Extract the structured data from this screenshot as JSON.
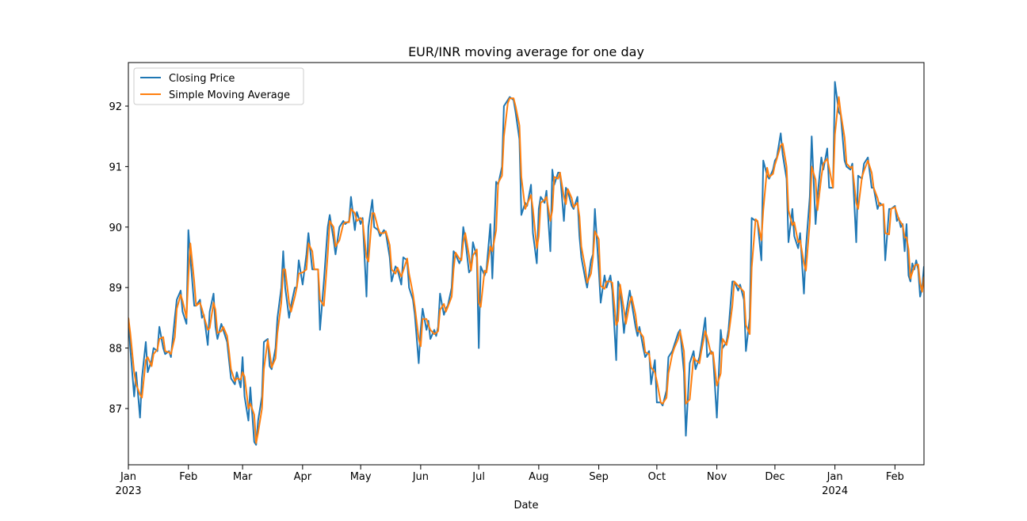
{
  "chart_data": {
    "type": "line",
    "title": "EUR/INR moving average for one day",
    "xlabel": "Date",
    "x": [
      0,
      1,
      3,
      4,
      6,
      7,
      9,
      10,
      12,
      13,
      15,
      16,
      18,
      19,
      21,
      22,
      24,
      25,
      27,
      28,
      30,
      31,
      32,
      34,
      35,
      37,
      38,
      39,
      41,
      42,
      44,
      45,
      46,
      48,
      49,
      51,
      52,
      53,
      55,
      56,
      58,
      59,
      60,
      62,
      63,
      65,
      66,
      67,
      69,
      70,
      72,
      73,
      74,
      76,
      77,
      79,
      80,
      81,
      83,
      84,
      86,
      87,
      88,
      90,
      92,
      93,
      95,
      96,
      98,
      99,
      101,
      103,
      104,
      106,
      107,
      109,
      111,
      112,
      114,
      115,
      117,
      118,
      120,
      121,
      123,
      124,
      126,
      127,
      129,
      130,
      132,
      133,
      135,
      136,
      138,
      139,
      141,
      142,
      144,
      145,
      147,
      148,
      150,
      151,
      152,
      154,
      155,
      156,
      158,
      159,
      160,
      161,
      163,
      164,
      165,
      167,
      168,
      169,
      171,
      172,
      173,
      174,
      176,
      177,
      178,
      180,
      181,
      182,
      184,
      185,
      187,
      188,
      190,
      191,
      193,
      194,
      196,
      197,
      199,
      200,
      202,
      203,
      205,
      206,
      208,
      209,
      211,
      212,
      213,
      215,
      216,
      218,
      219,
      220,
      222,
      223,
      225,
      226,
      227,
      229,
      230,
      232,
      233,
      234,
      236,
      237,
      239,
      240,
      241,
      243,
      244,
      246,
      247,
      249,
      250,
      252,
      253,
      254,
      256,
      257,
      259,
      260,
      262,
      263,
      264,
      266,
      267,
      269,
      270,
      272,
      273,
      275,
      276,
      278,
      279,
      281,
      282,
      284,
      285,
      287,
      288,
      290,
      292,
      293,
      295,
      296,
      298,
      299,
      301,
      302,
      304,
      306,
      307,
      309,
      310,
      312,
      313,
      315,
      316,
      318,
      319,
      321,
      322,
      324,
      325,
      327,
      328,
      330,
      331,
      333,
      334,
      335,
      337,
      338,
      340,
      341,
      343,
      344,
      346,
      347,
      349,
      350,
      352,
      353,
      355,
      356,
      358,
      359,
      361,
      362,
      364,
      365,
      367,
      368,
      370,
      371,
      373,
      374,
      376,
      377,
      379,
      380,
      382,
      384,
      385,
      387,
      388,
      390,
      391,
      393,
      394,
      396,
      397,
      398,
      399,
      400,
      401,
      402,
      403,
      404,
      405,
      406,
      407,
      408,
      409,
      410,
      411
    ],
    "series": [
      {
        "name": "Closing Price",
        "color": "#1f77b4",
        "values": [
          88.5,
          88.0,
          87.2,
          87.6,
          86.85,
          87.5,
          88.1,
          87.6,
          87.8,
          88.0,
          87.95,
          88.35,
          88.0,
          87.9,
          87.95,
          87.85,
          88.5,
          88.8,
          88.95,
          88.6,
          88.4,
          89.95,
          89.5,
          88.7,
          88.7,
          88.8,
          88.5,
          88.55,
          88.05,
          88.6,
          88.9,
          88.35,
          88.15,
          88.4,
          88.3,
          88.1,
          87.8,
          87.5,
          87.4,
          87.6,
          87.35,
          87.85,
          87.2,
          86.8,
          87.35,
          86.45,
          86.4,
          86.8,
          87.2,
          88.1,
          88.15,
          87.7,
          87.65,
          88.0,
          88.5,
          89.0,
          89.6,
          89.0,
          88.5,
          88.7,
          89.0,
          89.0,
          89.45,
          89.05,
          89.55,
          89.9,
          89.3,
          89.3,
          89.3,
          88.3,
          89.1,
          90.0,
          90.2,
          89.8,
          89.55,
          90.0,
          90.1,
          90.05,
          90.1,
          90.5,
          89.95,
          90.25,
          90.05,
          90.15,
          88.85,
          90.0,
          90.45,
          90.0,
          89.95,
          89.85,
          89.95,
          89.9,
          89.5,
          89.1,
          89.35,
          89.3,
          89.05,
          89.5,
          89.45,
          89.0,
          88.8,
          88.55,
          87.75,
          88.3,
          88.65,
          88.3,
          88.45,
          88.15,
          88.3,
          88.2,
          88.35,
          88.9,
          88.55,
          88.65,
          88.7,
          89.0,
          89.6,
          89.55,
          89.4,
          89.5,
          90.0,
          89.8,
          89.25,
          89.3,
          89.75,
          89.5,
          88.0,
          89.35,
          89.2,
          89.3,
          90.05,
          89.15,
          90.75,
          90.7,
          91.0,
          92.0,
          92.1,
          92.15,
          92.1,
          91.9,
          91.45,
          90.2,
          90.4,
          90.35,
          90.7,
          89.9,
          89.4,
          90.3,
          90.5,
          90.4,
          90.6,
          89.6,
          90.95,
          90.7,
          90.9,
          90.9,
          90.1,
          90.65,
          90.6,
          90.35,
          90.3,
          90.5,
          89.85,
          89.5,
          89.15,
          89.0,
          89.45,
          89.55,
          90.3,
          89.3,
          88.75,
          89.2,
          89.0,
          89.2,
          88.95,
          87.8,
          89.1,
          89.0,
          88.25,
          88.55,
          88.95,
          88.75,
          88.35,
          88.2,
          88.35,
          88.0,
          87.85,
          87.95,
          87.4,
          87.8,
          87.1,
          87.1,
          87.05,
          87.3,
          87.85,
          87.95,
          88.05,
          88.25,
          88.3,
          87.6,
          86.55,
          87.75,
          87.95,
          87.65,
          87.85,
          88.05,
          88.5,
          87.85,
          87.95,
          87.9,
          86.85,
          88.3,
          88.0,
          88.1,
          88.3,
          89.1,
          89.1,
          88.95,
          89.05,
          88.8,
          87.95,
          88.5,
          90.15,
          90.1,
          90.1,
          89.45,
          91.1,
          90.85,
          90.8,
          90.95,
          91.1,
          91.15,
          91.55,
          91.2,
          90.8,
          89.75,
          90.3,
          89.85,
          89.65,
          89.9,
          88.9,
          89.65,
          90.5,
          91.5,
          90.05,
          90.5,
          91.15,
          90.95,
          91.3,
          90.65,
          90.65,
          92.4,
          91.9,
          91.85,
          91.1,
          91.0,
          90.95,
          91.05,
          89.75,
          90.85,
          90.8,
          91.05,
          91.15,
          90.65,
          90.65,
          90.3,
          90.4,
          90.35,
          89.45,
          90.3,
          90.3,
          90.35,
          90.1,
          90.15,
          90.0,
          90.05,
          89.6,
          90.05,
          89.2,
          89.1,
          89.4,
          89.3,
          89.45,
          89.3,
          88.85,
          89.0,
          89.35
        ]
      },
      {
        "name": "Simple Moving Average",
        "color": "#ff7f0e",
        "values": [
          88.5,
          88.25,
          87.6,
          87.4,
          87.23,
          87.18,
          87.8,
          87.85,
          87.7,
          87.9,
          87.98,
          88.15,
          88.18,
          87.95,
          87.93,
          87.9,
          88.18,
          88.65,
          88.88,
          88.78,
          88.5,
          89.18,
          89.73,
          89.1,
          88.7,
          88.75,
          88.65,
          88.53,
          88.3,
          88.33,
          88.75,
          88.63,
          88.25,
          88.28,
          88.35,
          88.2,
          87.95,
          87.65,
          87.45,
          87.5,
          87.48,
          87.6,
          87.53,
          87.0,
          87.08,
          86.9,
          86.43,
          86.6,
          87.0,
          87.65,
          88.13,
          87.93,
          87.68,
          87.83,
          88.25,
          88.75,
          89.3,
          89.3,
          88.75,
          88.6,
          88.85,
          89.0,
          89.23,
          89.25,
          89.3,
          89.73,
          89.6,
          89.3,
          89.3,
          88.8,
          88.7,
          89.55,
          90.1,
          90.0,
          89.68,
          89.78,
          90.05,
          90.08,
          90.08,
          90.3,
          90.23,
          90.1,
          90.15,
          90.1,
          89.5,
          89.43,
          90.23,
          90.23,
          89.98,
          89.9,
          89.9,
          89.93,
          89.7,
          89.3,
          89.23,
          89.33,
          89.18,
          89.28,
          89.48,
          89.23,
          88.9,
          88.68,
          88.15,
          88.03,
          88.48,
          88.48,
          88.38,
          88.3,
          88.23,
          88.25,
          88.28,
          88.63,
          88.73,
          88.6,
          88.68,
          88.85,
          89.3,
          89.58,
          89.48,
          89.45,
          89.75,
          89.9,
          89.53,
          89.28,
          89.53,
          89.63,
          88.75,
          88.68,
          89.28,
          89.25,
          89.68,
          89.6,
          89.95,
          90.73,
          90.85,
          91.5,
          92.05,
          92.13,
          92.13,
          92.0,
          91.68,
          90.83,
          90.3,
          90.38,
          90.53,
          90.3,
          89.65,
          89.85,
          90.4,
          90.45,
          90.5,
          90.1,
          90.28,
          90.83,
          90.8,
          90.9,
          90.5,
          90.38,
          90.63,
          90.48,
          90.33,
          90.4,
          90.18,
          89.68,
          89.33,
          89.08,
          89.23,
          89.5,
          89.93,
          89.8,
          89.03,
          88.98,
          89.1,
          89.1,
          89.08,
          88.38,
          88.45,
          89.05,
          88.63,
          88.4,
          88.75,
          88.85,
          88.55,
          88.28,
          88.28,
          88.18,
          87.93,
          87.9,
          87.68,
          87.6,
          87.45,
          87.1,
          87.08,
          87.18,
          87.58,
          87.9,
          88.0,
          88.15,
          88.28,
          87.95,
          87.08,
          87.15,
          87.85,
          87.8,
          87.75,
          87.95,
          88.28,
          88.18,
          87.9,
          87.93,
          87.38,
          87.58,
          88.15,
          88.05,
          88.2,
          88.7,
          89.1,
          89.03,
          89.0,
          88.93,
          88.38,
          88.23,
          89.33,
          90.13,
          90.1,
          89.78,
          90.28,
          90.98,
          90.83,
          90.88,
          91.03,
          91.13,
          91.35,
          91.38,
          91.0,
          90.28,
          90.03,
          90.08,
          89.75,
          89.78,
          89.4,
          89.28,
          90.08,
          91.0,
          90.78,
          90.28,
          90.83,
          91.05,
          91.13,
          90.98,
          90.65,
          91.53,
          92.15,
          91.88,
          91.48,
          91.05,
          90.98,
          91.0,
          90.4,
          90.3,
          90.83,
          90.93,
          91.1,
          90.9,
          90.65,
          90.48,
          90.35,
          90.38,
          89.9,
          89.88,
          90.3,
          90.33,
          90.23,
          90.13,
          90.08,
          90.03,
          89.83,
          89.83,
          89.63,
          89.15,
          89.25,
          89.35,
          89.38,
          89.38,
          89.08,
          88.93,
          89.18
        ]
      }
    ],
    "xlim": [
      0,
      411
    ],
    "xticks": [
      {
        "value": 0,
        "label": "Jan\n2023"
      },
      {
        "value": 31,
        "label": "Feb"
      },
      {
        "value": 59,
        "label": "Mar"
      },
      {
        "value": 90,
        "label": "Apr"
      },
      {
        "value": 120,
        "label": "May"
      },
      {
        "value": 151,
        "label": "Jun"
      },
      {
        "value": 181,
        "label": "Jul"
      },
      {
        "value": 212,
        "label": "Aug"
      },
      {
        "value": 243,
        "label": "Sep"
      },
      {
        "value": 273,
        "label": "Oct"
      },
      {
        "value": 304,
        "label": "Nov"
      },
      {
        "value": 334,
        "label": "Dec"
      },
      {
        "value": 365,
        "label": "Jan\n2024"
      },
      {
        "value": 396,
        "label": "Feb"
      }
    ],
    "ylim": [
      86.07,
      92.72
    ],
    "yticks": [
      87,
      88,
      89,
      90,
      91,
      92
    ],
    "legend": "upper left"
  }
}
